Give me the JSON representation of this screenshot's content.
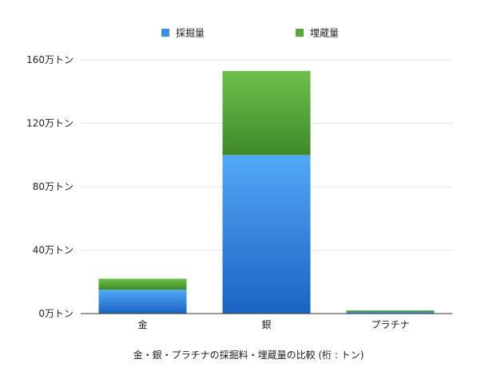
{
  "chart_data": {
    "type": "bar",
    "stacked": true,
    "caption": "金・銀・プラチナの採掘料・埋蔵量の比較 (桁 : トン)",
    "categories": [
      "金",
      "銀",
      "プラチナ"
    ],
    "series": [
      {
        "name": "採掘量",
        "values": [
          15,
          100,
          1
        ],
        "color": "#3d8fe0"
      },
      {
        "name": "埋蔵量",
        "values": [
          7,
          53,
          1
        ],
        "color": "#5aa83a"
      }
    ],
    "y_ticks": [
      "0万トン",
      "40万トン",
      "80万トン",
      "120万トン",
      "160万トン"
    ],
    "y_tick_values": [
      0,
      40,
      80,
      120,
      160
    ],
    "ylim": [
      0,
      160
    ],
    "grid": true,
    "legend_position": "top-center"
  }
}
